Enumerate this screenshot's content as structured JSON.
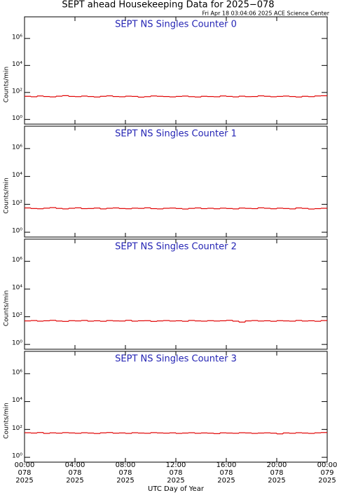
{
  "title": "SEPT ahead Housekeeping Data for 2025−078",
  "timestamp": "Fri Apr 18 03:04:06 2025 ACE Science Center",
  "chart_data": [
    {
      "type": "line",
      "title": "SEPT NS Singles Counter 0",
      "ylabel": "Counts/min",
      "color": "#e00000",
      "log_y": true,
      "ylim": [
        0.45,
        40000000
      ],
      "yticks": [
        {
          "value": 1,
          "label": "10⁰"
        },
        {
          "value": 100,
          "label": "10²"
        },
        {
          "value": 10000,
          "label": "10⁴"
        },
        {
          "value": 1000000,
          "label": "10⁶"
        }
      ],
      "xlim": [
        0,
        24
      ],
      "x": [
        0,
        0.5,
        1,
        1.5,
        2,
        2.5,
        3,
        3.5,
        4,
        4.5,
        5,
        5.5,
        6,
        6.5,
        7,
        7.5,
        8,
        8.5,
        9,
        9.5,
        10,
        10.5,
        11,
        11.5,
        12,
        12.5,
        13,
        13.5,
        14,
        14.5,
        15,
        15.5,
        16,
        16.5,
        17,
        17.5,
        18,
        18.5,
        19,
        19.5,
        20,
        20.5,
        21,
        21.5,
        22,
        22.5,
        23,
        23.5
      ],
      "values": [
        52,
        48,
        55,
        50,
        47,
        53,
        58,
        51,
        49,
        54,
        50,
        46,
        52,
        56,
        50,
        48,
        53,
        51,
        45,
        49,
        55,
        52,
        50,
        47,
        51,
        54,
        49,
        46,
        52,
        50,
        48,
        55,
        51,
        47,
        53,
        49,
        50,
        56,
        52,
        48,
        51,
        54,
        50,
        46,
        52,
        49,
        55,
        57
      ]
    },
    {
      "type": "line",
      "title": "SEPT NS Singles Counter 1",
      "ylabel": "Counts/min",
      "color": "#e00000",
      "log_y": true,
      "ylim": [
        0.45,
        40000000
      ],
      "yticks": [
        {
          "value": 1,
          "label": "10⁰"
        },
        {
          "value": 100,
          "label": "10²"
        },
        {
          "value": 10000,
          "label": "10⁴"
        },
        {
          "value": 1000000,
          "label": "10⁶"
        }
      ],
      "xlim": [
        0,
        24
      ],
      "x": [
        0,
        0.5,
        1,
        1.5,
        2,
        2.5,
        3,
        3.5,
        4,
        4.5,
        5,
        5.5,
        6,
        6.5,
        7,
        7.5,
        8,
        8.5,
        9,
        9.5,
        10,
        10.5,
        11,
        11.5,
        12,
        12.5,
        13,
        13.5,
        14,
        14.5,
        15,
        15.5,
        16,
        16.5,
        17,
        17.5,
        18,
        18.5,
        19,
        19.5,
        20,
        20.5,
        21,
        21.5,
        22,
        22.5,
        23,
        23.5
      ],
      "values": [
        55,
        50,
        48,
        53,
        58,
        51,
        47,
        52,
        56,
        49,
        50,
        54,
        47,
        52,
        55,
        50,
        48,
        53,
        51,
        56,
        49,
        47,
        52,
        54,
        50,
        46,
        51,
        55,
        49,
        52,
        48,
        53,
        50,
        47,
        54,
        51,
        49,
        56,
        52,
        48,
        53,
        50,
        47,
        55,
        51,
        46,
        49,
        52
      ]
    },
    {
      "type": "line",
      "title": "SEPT NS Singles Counter 2",
      "ylabel": "Counts/min",
      "color": "#e00000",
      "log_y": true,
      "ylim": [
        0.45,
        40000000
      ],
      "yticks": [
        {
          "value": 1,
          "label": "10⁰"
        },
        {
          "value": 100,
          "label": "10²"
        },
        {
          "value": 10000,
          "label": "10⁴"
        },
        {
          "value": 1000000,
          "label": "10⁶"
        }
      ],
      "xlim": [
        0,
        24
      ],
      "x": [
        0,
        0.5,
        1,
        1.5,
        2,
        2.5,
        3,
        3.5,
        4,
        4.5,
        5,
        5.5,
        6,
        6.5,
        7,
        7.5,
        8,
        8.5,
        9,
        9.5,
        10,
        10.5,
        11,
        11.5,
        12,
        12.5,
        13,
        13.5,
        14,
        14.5,
        15,
        15.5,
        16,
        16.5,
        17,
        17.5,
        18,
        18.5,
        19,
        19.5,
        20,
        20.5,
        21,
        21.5,
        22,
        22.5,
        23,
        23.5
      ],
      "values": [
        50,
        53,
        48,
        51,
        55,
        49,
        46,
        52,
        50,
        54,
        48,
        51,
        47,
        53,
        50,
        49,
        55,
        48,
        51,
        52,
        46,
        50,
        53,
        49,
        51,
        47,
        54,
        50,
        48,
        52,
        49,
        51,
        55,
        48,
        41,
        50,
        53,
        49,
        51,
        47,
        52,
        50,
        48,
        54,
        49,
        51,
        47,
        53
      ]
    },
    {
      "type": "line",
      "title": "SEPT NS Singles Counter 3",
      "ylabel": "Counts/min",
      "color": "#e00000",
      "log_y": true,
      "ylim": [
        0.45,
        40000000
      ],
      "yticks": [
        {
          "value": 1,
          "label": "10⁰"
        },
        {
          "value": 100,
          "label": "10²"
        },
        {
          "value": 10000,
          "label": "10⁴"
        },
        {
          "value": 1000000,
          "label": "10⁶"
        }
      ],
      "xlim": [
        0,
        24
      ],
      "xticks": [
        {
          "value": 0,
          "label": "00:00"
        },
        {
          "value": 4,
          "label": "04:00"
        },
        {
          "value": 8,
          "label": "08:00"
        },
        {
          "value": 12,
          "label": "12:00"
        },
        {
          "value": 16,
          "label": "16:00"
        },
        {
          "value": 20,
          "label": "20:00"
        },
        {
          "value": 24,
          "label": "00:00"
        }
      ],
      "xtick_days": [
        "078",
        "078",
        "078",
        "078",
        "078",
        "078",
        "079"
      ],
      "xtick_years": [
        "2025",
        "2025",
        "2025",
        "2025",
        "2025",
        "2025",
        "2025"
      ],
      "xlabel": "UTC Day of Year",
      "x": [
        0,
        0.5,
        1,
        1.5,
        2,
        2.5,
        3,
        3.5,
        4,
        4.5,
        5,
        5.5,
        6,
        6.5,
        7,
        7.5,
        8,
        8.5,
        9,
        9.5,
        10,
        10.5,
        11,
        11.5,
        12,
        12.5,
        13,
        13.5,
        14,
        14.5,
        15,
        15.5,
        16,
        16.5,
        17,
        17.5,
        18,
        18.5,
        19,
        19.5,
        20,
        20.5,
        21,
        21.5,
        22,
        22.5,
        23,
        23.5
      ],
      "values": [
        58,
        55,
        60,
        52,
        57,
        54,
        59,
        56,
        53,
        58,
        55,
        51,
        57,
        60,
        54,
        56,
        52,
        58,
        55,
        53,
        59,
        56,
        54,
        57,
        52,
        55,
        58,
        53,
        56,
        54,
        50,
        57,
        55,
        53,
        58,
        56,
        52,
        55,
        57,
        54,
        48,
        56,
        53,
        58,
        55,
        52,
        57,
        60
      ]
    }
  ]
}
